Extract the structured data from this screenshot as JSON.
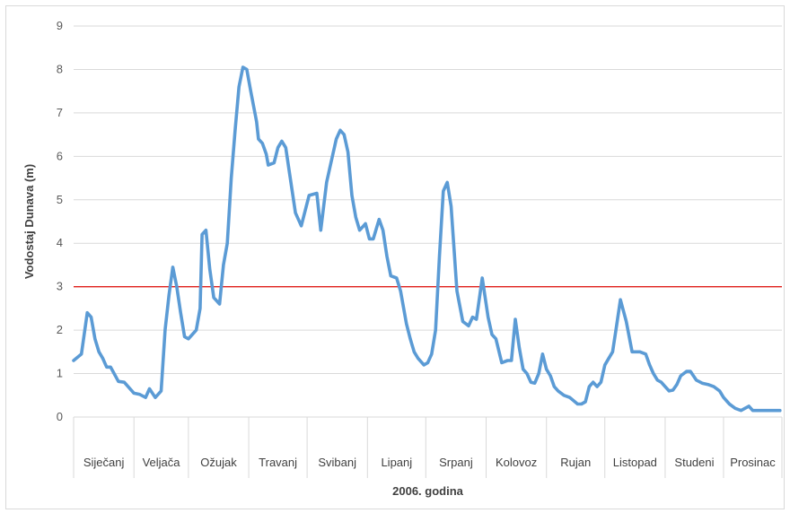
{
  "chart_data": {
    "type": "line",
    "xlabel": "2006. godina",
    "ylabel": "Vodostaj Dunava  (m)",
    "ylim": [
      0,
      9
    ],
    "yticks": [
      0,
      1,
      2,
      3,
      4,
      5,
      6,
      7,
      8,
      9
    ],
    "grid": true,
    "categories": [
      "Siječanj",
      "Veljača",
      "Ožujak",
      "Travanj",
      "Svibanj",
      "Lipanj",
      "Srpanj",
      "Kolovoz",
      "Rujan",
      "Listopad",
      "Studeni",
      "Prosinac"
    ],
    "colors": {
      "series": "#5b9bd5",
      "reference": "#e0201b",
      "grid": "#d9d9d9"
    },
    "reference_line": {
      "value": 3
    },
    "series": [
      {
        "x": [
          1,
          5,
          8,
          10,
          12,
          14,
          16,
          18,
          20,
          24,
          27,
          32,
          35,
          38,
          40,
          43,
          46,
          48,
          50,
          52,
          54,
          56,
          58,
          60,
          62,
          64,
          66,
          67,
          69,
          71,
          73,
          76,
          78,
          80,
          82,
          84,
          86,
          88,
          90,
          92,
          95,
          96,
          98,
          100,
          101,
          104,
          106,
          108,
          110,
          112,
          115,
          118,
          122,
          126,
          128,
          131,
          133,
          136,
          138,
          140,
          142,
          144,
          146,
          148,
          150,
          151,
          153,
          155,
          158,
          160,
          162,
          164,
          167,
          169,
          172,
          174,
          176,
          178,
          181,
          183,
          185,
          187,
          189,
          191,
          193,
          195,
          198,
          201,
          204,
          206,
          208,
          211,
          214,
          216,
          218,
          221,
          224,
          226,
          228,
          230,
          232,
          234,
          236,
          238,
          240,
          242,
          244,
          246,
          248,
          250,
          253,
          256,
          260,
          262,
          264,
          266,
          268,
          270,
          272,
          274,
          276,
          278,
          280,
          282,
          285,
          288,
          292,
          295,
          297,
          299,
          301,
          303,
          305,
          307,
          309,
          311,
          313,
          316,
          318,
          321,
          324,
          327,
          330,
          333,
          335,
          338,
          341,
          344,
          346,
          348,
          350,
          352,
          354,
          356,
          358,
          360,
          362,
          364
        ],
        "values": [
          1.3,
          1.45,
          2.4,
          2.3,
          1.8,
          1.5,
          1.35,
          1.15,
          1.15,
          0.82,
          0.8,
          0.55,
          0.52,
          0.45,
          0.65,
          0.45,
          0.6,
          2.0,
          2.8,
          3.45,
          3.0,
          2.4,
          1.85,
          1.8,
          1.9,
          2.0,
          2.5,
          4.2,
          4.3,
          3.4,
          2.75,
          2.6,
          3.5,
          4.0,
          5.5,
          6.6,
          7.6,
          8.05,
          8.0,
          7.5,
          6.8,
          6.4,
          6.3,
          6.05,
          5.8,
          5.85,
          6.2,
          6.35,
          6.2,
          5.6,
          4.7,
          4.4,
          5.1,
          5.15,
          4.3,
          5.4,
          5.8,
          6.4,
          6.6,
          6.5,
          6.1,
          5.1,
          4.6,
          4.3,
          4.4,
          4.45,
          4.1,
          4.1,
          4.55,
          4.3,
          3.7,
          3.25,
          3.2,
          2.9,
          2.15,
          1.8,
          1.5,
          1.35,
          1.2,
          1.25,
          1.45,
          2.0,
          3.7,
          5.2,
          5.4,
          4.85,
          2.9,
          2.2,
          2.1,
          2.3,
          2.25,
          3.2,
          2.3,
          1.9,
          1.8,
          1.25,
          1.3,
          1.3,
          2.25,
          1.6,
          1.1,
          1.0,
          0.8,
          0.78,
          1.0,
          1.45,
          1.1,
          0.95,
          0.7,
          0.6,
          0.5,
          0.45,
          0.3,
          0.3,
          0.35,
          0.7,
          0.8,
          0.7,
          0.8,
          1.2,
          1.35,
          1.5,
          2.1,
          2.7,
          2.2,
          1.5,
          1.5,
          1.45,
          1.2,
          1.0,
          0.85,
          0.8,
          0.7,
          0.6,
          0.62,
          0.75,
          0.95,
          1.05,
          1.05,
          0.85,
          0.78,
          0.75,
          0.7,
          0.6,
          0.45,
          0.3,
          0.2,
          0.15,
          0.2,
          0.25,
          0.15,
          0.15,
          0.15,
          0.15,
          0.15,
          0.15,
          0.15,
          0.15
        ],
        "x_unit": "day of year"
      }
    ]
  }
}
